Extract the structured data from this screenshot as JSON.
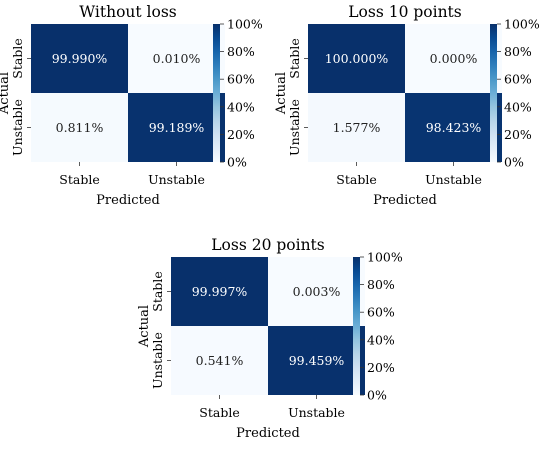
{
  "chart_data": [
    {
      "type": "heatmap",
      "title": "Without loss",
      "xlabel": "Predicted",
      "ylabel": "Actual",
      "x_categories": [
        "Stable",
        "Unstable"
      ],
      "y_categories": [
        "Stable",
        "Unstable"
      ],
      "values": [
        [
          99.99,
          0.01
        ],
        [
          0.811,
          99.189
        ]
      ],
      "cell_labels": [
        [
          "99.990%",
          "0.010%"
        ],
        [
          "0.811%",
          "99.189%"
        ]
      ],
      "colorbar": {
        "range": [
          0,
          100
        ],
        "ticks": [
          "0%",
          "20%",
          "40%",
          "60%",
          "80%",
          "100%"
        ]
      }
    },
    {
      "type": "heatmap",
      "title": "Loss 10 points",
      "xlabel": "Predicted",
      "ylabel": "Actual",
      "x_categories": [
        "Stable",
        "Unstable"
      ],
      "y_categories": [
        "Stable",
        "Unstable"
      ],
      "values": [
        [
          100.0,
          0.0
        ],
        [
          1.577,
          98.423
        ]
      ],
      "cell_labels": [
        [
          "100.000%",
          "0.000%"
        ],
        [
          "1.577%",
          "98.423%"
        ]
      ],
      "colorbar": {
        "range": [
          0,
          100
        ],
        "ticks": [
          "0%",
          "20%",
          "40%",
          "60%",
          "80%",
          "100%"
        ]
      }
    },
    {
      "type": "heatmap",
      "title": "Loss 20 points",
      "xlabel": "Predicted",
      "ylabel": "Actual",
      "x_categories": [
        "Stable",
        "Unstable"
      ],
      "y_categories": [
        "Stable",
        "Unstable"
      ],
      "values": [
        [
          99.997,
          0.003
        ],
        [
          0.541,
          99.459
        ]
      ],
      "cell_labels": [
        [
          "99.997%",
          "0.003%"
        ],
        [
          "0.541%",
          "99.459%"
        ]
      ],
      "colorbar": {
        "range": [
          0,
          100
        ],
        "ticks": [
          "0%",
          "20%",
          "40%",
          "60%",
          "80%",
          "100%"
        ]
      }
    }
  ],
  "colors": {
    "low": "#f7fbff",
    "high": "#08306b",
    "text_dark": "#222222",
    "text_light": "#ffffff"
  }
}
